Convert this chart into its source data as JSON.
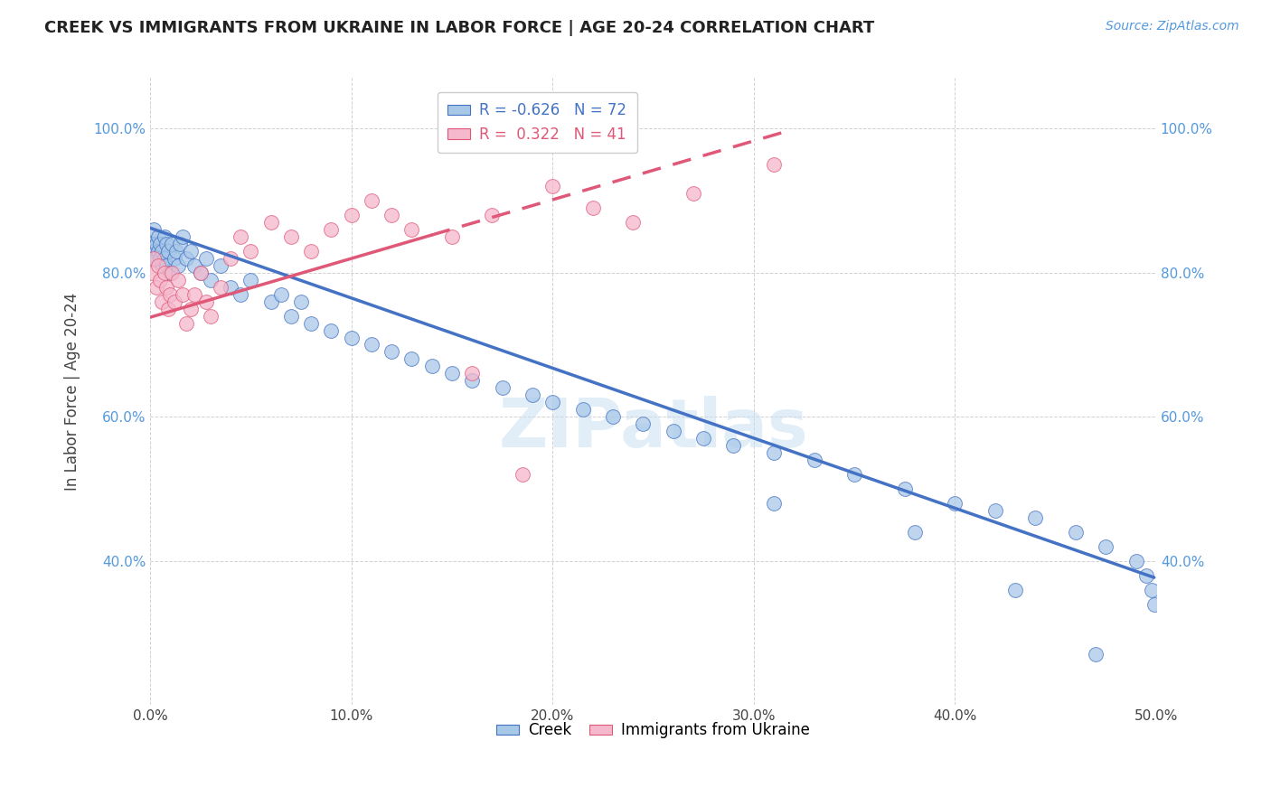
{
  "title": "CREEK VS IMMIGRANTS FROM UKRAINE IN LABOR FORCE | AGE 20-24 CORRELATION CHART",
  "source": "Source: ZipAtlas.com",
  "ylabel": "In Labor Force | Age 20-24",
  "xmin": 0.0,
  "xmax": 0.5,
  "ymin": 0.2,
  "ymax": 1.07,
  "xticks": [
    0.0,
    0.1,
    0.2,
    0.3,
    0.4,
    0.5
  ],
  "xtick_labels": [
    "0.0%",
    "10.0%",
    "20.0%",
    "30.0%",
    "40.0%",
    "50.0%"
  ],
  "yticks": [
    0.4,
    0.6,
    0.8,
    1.0
  ],
  "ytick_labels": [
    "40.0%",
    "60.0%",
    "80.0%",
    "100.0%"
  ],
  "watermark": "ZIPatlas",
  "legend_blue_label": "Creek",
  "legend_pink_label": "Immigrants from Ukraine",
  "legend_blue_R": "R = -0.626",
  "legend_blue_N": "N = 72",
  "legend_pink_R": "R =  0.322",
  "legend_pink_N": "N = 41",
  "blue_color": "#a8c8e8",
  "pink_color": "#f5b8cc",
  "blue_line_color": "#4472c4",
  "pink_line_color": "#e05878",
  "creek_x": [
    0.001,
    0.002,
    0.002,
    0.003,
    0.003,
    0.004,
    0.004,
    0.005,
    0.005,
    0.006,
    0.006,
    0.007,
    0.007,
    0.008,
    0.008,
    0.009,
    0.01,
    0.011,
    0.012,
    0.013,
    0.014,
    0.015,
    0.016,
    0.018,
    0.02,
    0.022,
    0.025,
    0.028,
    0.03,
    0.035,
    0.04,
    0.045,
    0.05,
    0.06,
    0.065,
    0.07,
    0.075,
    0.08,
    0.09,
    0.1,
    0.11,
    0.12,
    0.13,
    0.14,
    0.15,
    0.16,
    0.175,
    0.19,
    0.2,
    0.215,
    0.23,
    0.245,
    0.26,
    0.275,
    0.29,
    0.31,
    0.33,
    0.35,
    0.375,
    0.4,
    0.42,
    0.44,
    0.46,
    0.475,
    0.49,
    0.495,
    0.498,
    0.499,
    0.31,
    0.38,
    0.43,
    0.47
  ],
  "creek_y": [
    0.84,
    0.86,
    0.83,
    0.82,
    0.84,
    0.85,
    0.83,
    0.82,
    0.84,
    0.81,
    0.83,
    0.85,
    0.82,
    0.84,
    0.81,
    0.83,
    0.8,
    0.84,
    0.82,
    0.83,
    0.81,
    0.84,
    0.85,
    0.82,
    0.83,
    0.81,
    0.8,
    0.82,
    0.79,
    0.81,
    0.78,
    0.77,
    0.79,
    0.76,
    0.77,
    0.74,
    0.76,
    0.73,
    0.72,
    0.71,
    0.7,
    0.69,
    0.68,
    0.67,
    0.66,
    0.65,
    0.64,
    0.63,
    0.62,
    0.61,
    0.6,
    0.59,
    0.58,
    0.57,
    0.56,
    0.55,
    0.54,
    0.52,
    0.5,
    0.48,
    0.47,
    0.46,
    0.44,
    0.42,
    0.4,
    0.38,
    0.36,
    0.34,
    0.48,
    0.44,
    0.36,
    0.27
  ],
  "ukraine_x": [
    0.001,
    0.002,
    0.003,
    0.004,
    0.005,
    0.006,
    0.007,
    0.008,
    0.009,
    0.01,
    0.011,
    0.012,
    0.014,
    0.016,
    0.018,
    0.02,
    0.022,
    0.025,
    0.028,
    0.03,
    0.035,
    0.04,
    0.045,
    0.05,
    0.06,
    0.07,
    0.08,
    0.09,
    0.1,
    0.11,
    0.12,
    0.13,
    0.15,
    0.17,
    0.2,
    0.22,
    0.24,
    0.27,
    0.31,
    0.16,
    0.185
  ],
  "ukraine_y": [
    0.8,
    0.82,
    0.78,
    0.81,
    0.79,
    0.76,
    0.8,
    0.78,
    0.75,
    0.77,
    0.8,
    0.76,
    0.79,
    0.77,
    0.73,
    0.75,
    0.77,
    0.8,
    0.76,
    0.74,
    0.78,
    0.82,
    0.85,
    0.83,
    0.87,
    0.85,
    0.83,
    0.86,
    0.88,
    0.9,
    0.88,
    0.86,
    0.85,
    0.88,
    0.92,
    0.89,
    0.87,
    0.91,
    0.95,
    0.66,
    0.52
  ],
  "blue_trendline_x": [
    0.0,
    0.499
  ],
  "blue_trendline_y": [
    0.862,
    0.377
  ],
  "pink_trendline_x": [
    0.0,
    0.315
  ],
  "pink_trendline_y": [
    0.738,
    0.995
  ]
}
